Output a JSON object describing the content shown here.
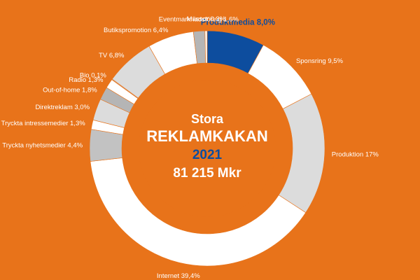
{
  "chart_data": {
    "type": "pie",
    "title": "Stora REKLAMKAKAN",
    "center": {
      "line1": "Stora",
      "line2": "REKLAMKAKAN",
      "year": "2021",
      "total": "81 215 Mkr"
    },
    "slices": [
      {
        "category": "Produktmedia",
        "value": 8.0,
        "label": "Produktmedia 8,0%",
        "color": "#0d4d9e",
        "highlight": true
      },
      {
        "category": "Sponsring",
        "value": 9.5,
        "label": "Sponsring 9,5%",
        "color": "#ffffff"
      },
      {
        "category": "Produktion",
        "value": 17.0,
        "label": "Produktion 17%",
        "color": "#dcdcdc"
      },
      {
        "category": "Internet",
        "value": 39.4,
        "label": "Internet 39,4%",
        "color": "#ffffff"
      },
      {
        "category": "Tryckta nyhetsmedier",
        "value": 4.4,
        "label": "Tryckta nyhetsmedier 4,4%",
        "color": "#c2c2c2"
      },
      {
        "category": "Tryckta intressemedier",
        "value": 1.3,
        "label": "Tryckta intressemedier 1,3%",
        "color": "#ffffff"
      },
      {
        "category": "Direktreklam",
        "value": 3.0,
        "label": "Direktreklam 3,0%",
        "color": "#dcdcdc"
      },
      {
        "category": "Out-of-home",
        "value": 1.8,
        "label": "Out-of-home 1,8%",
        "color": "#b5b5b5"
      },
      {
        "category": "Radio",
        "value": 1.3,
        "label": "Radio 1,3%",
        "color": "#ffffff"
      },
      {
        "category": "Bio",
        "value": 0.1,
        "label": "Bio 0,1%",
        "color": "#c2c2c2"
      },
      {
        "category": "TV",
        "value": 6.8,
        "label": "TV 6,8%",
        "color": "#dcdcdc"
      },
      {
        "category": "Butikspromotion",
        "value": 6.4,
        "label": "Butikspromotion 6,4%",
        "color": "#ffffff"
      },
      {
        "category": "Eventmarknadsföring",
        "value": 1.6,
        "label": "Eventmarknadsföring 1,6%",
        "color": "#b5b5b5"
      },
      {
        "category": "Mässor",
        "value": 0.3,
        "label": "Mässor 0,3%",
        "color": "#ffffff"
      }
    ],
    "colors": {
      "background": "#e8731a",
      "center_fill": "#e8731a",
      "center_text": "#ffffff",
      "year_text": "#0d4d9e",
      "highlight": "#0d4d9e"
    }
  }
}
